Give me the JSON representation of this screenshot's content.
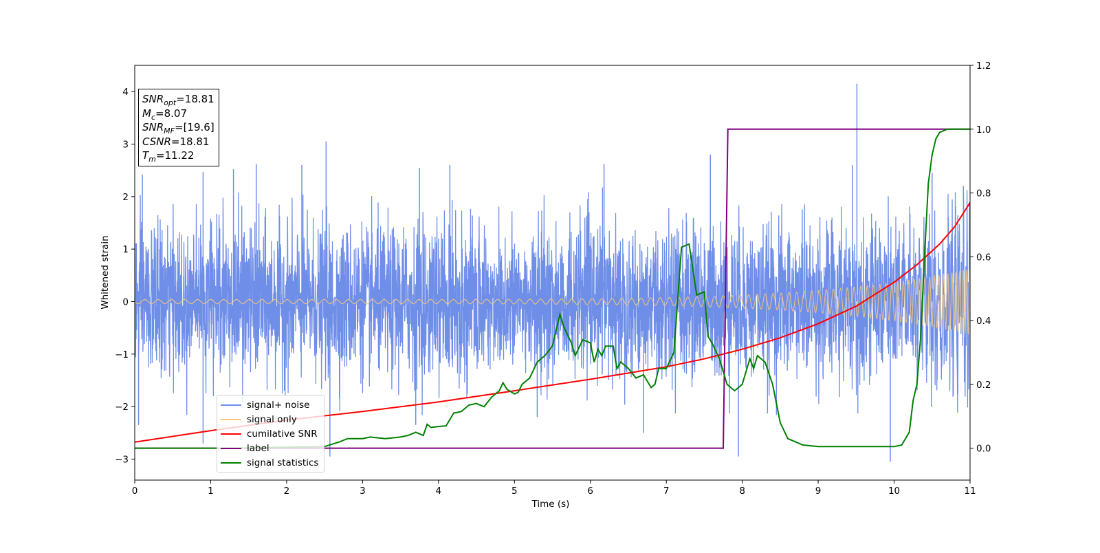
{
  "stats": {
    "snr_opt": {
      "var": "SNR",
      "sub": "opt",
      "value": "=18.81"
    },
    "mc": {
      "var": "M",
      "sub": "c",
      "value": "=8.07"
    },
    "snr_mf": {
      "var": "SNR",
      "sub": "MF",
      "value": "=[19.6]"
    },
    "csnr": {
      "var": "CSNR",
      "value": "=18.81"
    },
    "tm": {
      "var": "T",
      "sub": "m",
      "value": "=11.22"
    }
  },
  "legend": [
    {
      "label": "signal+ noise",
      "color": "#6f8ee8"
    },
    {
      "label": "signal only",
      "color": "#f5c878"
    },
    {
      "label": "cumilative SNR",
      "color": "#ff0000"
    },
    {
      "label": "label",
      "color": "#800080"
    },
    {
      "label": "signal statistics",
      "color": "#008000"
    }
  ],
  "chart_data": {
    "type": "line",
    "xlabel": "Time (s)",
    "ylabel": "Whitened strain",
    "xlim": [
      0,
      11
    ],
    "ylim": [
      -3.4,
      4.5
    ],
    "y2lim": [
      -0.1,
      1.2
    ],
    "xticks": [
      0,
      1,
      2,
      3,
      4,
      5,
      6,
      7,
      8,
      9,
      10,
      11
    ],
    "yticks": [
      -3,
      -2,
      -1,
      0,
      1,
      2,
      3,
      4
    ],
    "y2ticks": [
      "0.0",
      "0.2",
      "0.4",
      "0.6",
      "0.8",
      "1.0",
      "1.2"
    ],
    "grid": false,
    "legend_position": "lower-left",
    "series": [
      {
        "name": "signal+ noise",
        "axis": "left",
        "color": "#6f8ee8",
        "noise_sigma": 0.6,
        "peaks": [
          [
            0.05,
            -2.35
          ],
          [
            0.1,
            2.42
          ],
          [
            0.9,
            2.47
          ],
          [
            0.9,
            -2.7
          ],
          [
            1.3,
            2.52
          ],
          [
            1.6,
            2.62
          ],
          [
            2.2,
            2.6
          ],
          [
            2.52,
            3.05
          ],
          [
            2.57,
            -2.95
          ],
          [
            3.7,
            -2.35
          ],
          [
            3.75,
            2.55
          ],
          [
            4.15,
            2.6
          ],
          [
            5.3,
            -2.2
          ],
          [
            6.18,
            2.62
          ],
          [
            6.7,
            -2.5
          ],
          [
            7.58,
            2.8
          ],
          [
            7.95,
            -2.95
          ],
          [
            9.45,
            2.6
          ],
          [
            9.51,
            4.15
          ],
          [
            9.95,
            -3.05
          ],
          [
            10.5,
            2.45
          ]
        ]
      },
      {
        "name": "signal only",
        "axis": "left",
        "color": "#f5c878",
        "chirp": {
          "t_c": 11.22,
          "amp_start": 0.04,
          "amp_end": 0.62
        }
      },
      {
        "name": "cumilative SNR",
        "axis": "right",
        "x": [
          0,
          1,
          2,
          3,
          4,
          5,
          6,
          7,
          7.5,
          8,
          8.5,
          9,
          9.5,
          10,
          10.3,
          10.6,
          10.8,
          11
        ],
        "values": [
          0.019,
          0.055,
          0.088,
          0.115,
          0.145,
          0.18,
          0.216,
          0.255,
          0.28,
          0.31,
          0.346,
          0.39,
          0.445,
          0.52,
          0.575,
          0.64,
          0.695,
          0.77
        ]
      },
      {
        "name": "label",
        "axis": "right",
        "x": [
          0,
          7.75,
          7.81,
          11
        ],
        "values": [
          0,
          0,
          1,
          1
        ]
      },
      {
        "name": "signal statistics",
        "axis": "right",
        "x": [
          0,
          1.3,
          2,
          2.5,
          2.7,
          2.8,
          3,
          3.1,
          3.3,
          3.5,
          3.6,
          3.7,
          3.8,
          3.85,
          3.9,
          4.0,
          4.1,
          4.2,
          4.3,
          4.4,
          4.5,
          4.6,
          4.7,
          4.8,
          4.85,
          4.9,
          5.0,
          5.05,
          5.1,
          5.15,
          5.2,
          5.3,
          5.4,
          5.5,
          5.6,
          5.65,
          5.75,
          5.8,
          5.9,
          6.0,
          6.05,
          6.1,
          6.15,
          6.2,
          6.3,
          6.35,
          6.4,
          6.5,
          6.6,
          6.7,
          6.8,
          6.85,
          6.9,
          7.0,
          7.1,
          7.2,
          7.3,
          7.4,
          7.5,
          7.55,
          7.6,
          7.7,
          7.8,
          7.9,
          8.0,
          8.1,
          8.15,
          8.2,
          8.3,
          8.4,
          8.5,
          8.6,
          8.8,
          9,
          9.2,
          9.5,
          9.8,
          10,
          10.1,
          10.2,
          10.25,
          10.3,
          10.35,
          10.4,
          10.45,
          10.5,
          10.55,
          10.6,
          10.7,
          11
        ],
        "values": [
          0,
          0,
          0.003,
          0.005,
          0.02,
          0.03,
          0.03,
          0.035,
          0.03,
          0.035,
          0.04,
          0.05,
          0.04,
          0.075,
          0.065,
          0.068,
          0.07,
          0.11,
          0.115,
          0.135,
          0.14,
          0.13,
          0.16,
          0.18,
          0.205,
          0.185,
          0.17,
          0.175,
          0.2,
          0.21,
          0.22,
          0.27,
          0.29,
          0.32,
          0.42,
          0.38,
          0.33,
          0.29,
          0.34,
          0.33,
          0.27,
          0.31,
          0.29,
          0.32,
          0.32,
          0.25,
          0.27,
          0.25,
          0.22,
          0.23,
          0.19,
          0.2,
          0.25,
          0.25,
          0.3,
          0.63,
          0.64,
          0.48,
          0.49,
          0.35,
          0.33,
          0.28,
          0.2,
          0.18,
          0.2,
          0.28,
          0.25,
          0.29,
          0.27,
          0.2,
          0.08,
          0.03,
          0.01,
          0.005,
          0.005,
          0.005,
          0.005,
          0.005,
          0.01,
          0.05,
          0.15,
          0.2,
          0.35,
          0.6,
          0.83,
          0.92,
          0.97,
          0.99,
          1.0,
          1.0
        ]
      }
    ]
  }
}
